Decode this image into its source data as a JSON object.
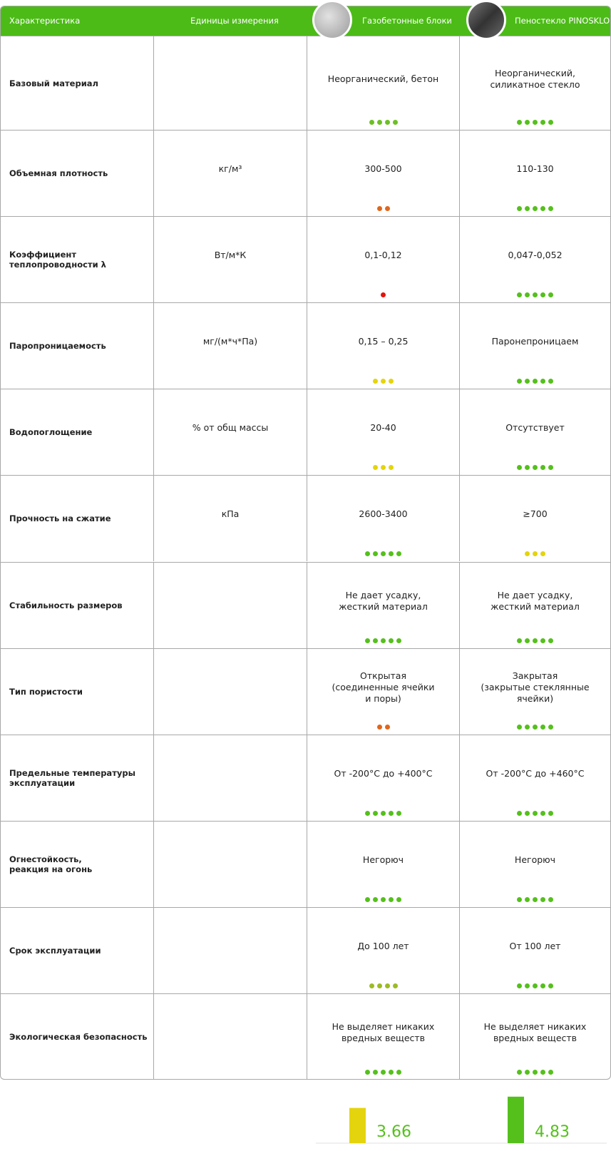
{
  "header": {
    "columns": [
      "Характеристика",
      "Единицы измерения",
      "Газобетонные блоки",
      "Пеностекло PINOSKLO"
    ]
  },
  "rows": [
    {
      "name": "Базовый материал",
      "cells": [
        {
          "text": "Неорганический, бетон",
          "rating": 4,
          "color": "#6cc023"
        },
        {
          "text": "Неорганический,\nсиликатное стекло",
          "rating": 5,
          "color": "#55c01c"
        }
      ]
    },
    {
      "name": "Объемная плотность",
      "unit": "кг/м³",
      "cells": [
        {
          "text": "300-500",
          "rating": 2,
          "color": "#e0661c"
        },
        {
          "text": "110-130",
          "rating": 5,
          "color": "#55c01c"
        }
      ]
    },
    {
      "name": "Коэффициент\nтеплопроводности λ",
      "unit": "Вт/м*К",
      "cells": [
        {
          "text": "0,1-0,12",
          "rating": 1,
          "color": "#e3130d"
        },
        {
          "text": "0,047-0,052",
          "rating": 5,
          "color": "#55c01c"
        }
      ]
    },
    {
      "name": "Паропроницаемость",
      "unit": "мг/(м*ч*Па)",
      "cells": [
        {
          "text": "0,15 – 0,25",
          "rating": 3,
          "color": "#e4d40e"
        },
        {
          "text": "Паронепроницаем",
          "rating": 5,
          "color": "#55c01c"
        }
      ]
    },
    {
      "name": "Водопоглощение",
      "unit": "% от общ массы",
      "cells": [
        {
          "text": "20-40",
          "rating": 3,
          "color": "#e4d40e"
        },
        {
          "text": "Отсутствует",
          "rating": 5,
          "color": "#55c01c"
        }
      ]
    },
    {
      "name": "Прочность на сжатие",
      "unit": "кПа",
      "cells": [
        {
          "text": "2600-3400",
          "rating": 5,
          "color": "#55c01c"
        },
        {
          "text": "≥700",
          "rating": 3,
          "color": "#e4d40e"
        }
      ]
    },
    {
      "name": "Стабильность размеров",
      "cells": [
        {
          "text": "Не дает усадку,\nжесткий материал",
          "rating": 5,
          "color": "#55c01c"
        },
        {
          "text": "Не дает усадку,\nжесткий материал",
          "rating": 5,
          "color": "#55c01c"
        }
      ]
    },
    {
      "name": "Тип пористости",
      "cells": [
        {
          "text": "Открытая\n(соединенные ячейки\nи поры)",
          "rating": 2,
          "color": "#e0661c"
        },
        {
          "text": "Закрытая\n(закрытые стеклянные\nячейки)",
          "rating": 5,
          "color": "#55c01c"
        }
      ]
    },
    {
      "name": "Предельные температуры\nэксплуатации",
      "cells": [
        {
          "text": "От -200°C до +400°C",
          "rating": 5,
          "color": "#55c01c"
        },
        {
          "text": "От -200°C до  +460°C",
          "rating": 5,
          "color": "#55c01c"
        }
      ]
    },
    {
      "name": "Огнестойкость,\nреакция на огонь",
      "cells": [
        {
          "text": "Негорюч",
          "rating": 5,
          "color": "#55c01c"
        },
        {
          "text": "Негорюч",
          "rating": 5,
          "color": "#55c01c"
        }
      ]
    },
    {
      "name": "Срок эксплуатации",
      "cells": [
        {
          "text": "До 100 лет",
          "rating": 4,
          "color": "#9cbb25"
        },
        {
          "text": "От 100 лет",
          "rating": 5,
          "color": "#55c01c"
        }
      ]
    },
    {
      "name": "Экологическая безопасность",
      "cells": [
        {
          "text": "Не выделяет никаких\nвредных веществ",
          "rating": 5,
          "color": "#55c01c"
        },
        {
          "text": "Не выделяет никаких\nвредных веществ",
          "rating": 5,
          "color": "#55c01c"
        }
      ]
    }
  ],
  "scores": [
    {
      "value": 3.66,
      "color": "#e4d40e"
    },
    {
      "value": 4.83,
      "color": "#55c01c"
    }
  ]
}
